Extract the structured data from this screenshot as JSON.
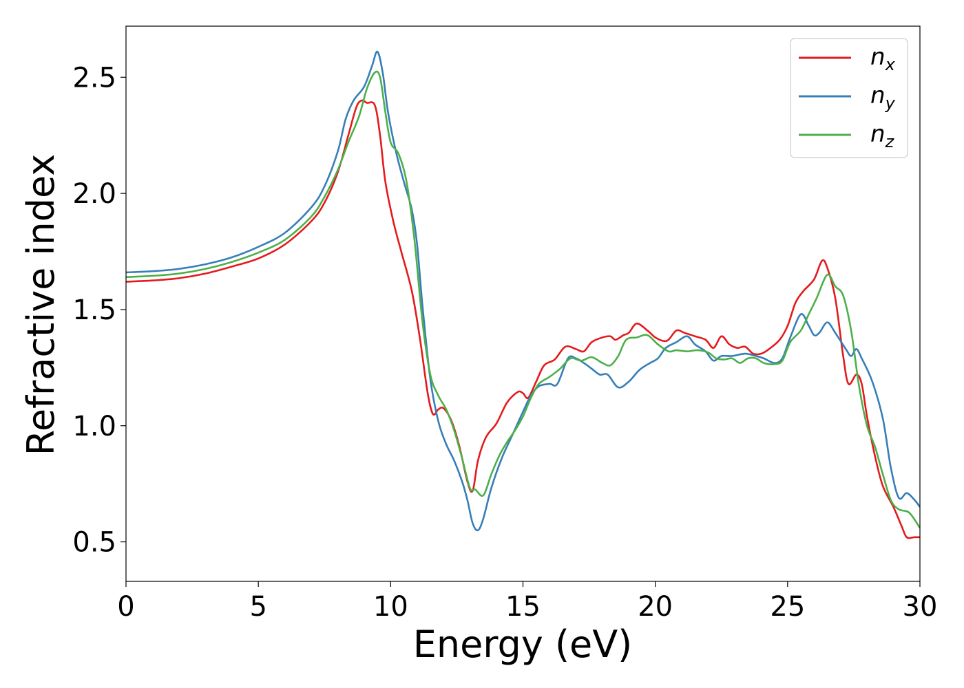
{
  "chart_data": {
    "type": "line",
    "xlabel": "Energy (eV)",
    "ylabel": "Refractive index",
    "xlim": [
      0,
      30
    ],
    "ylim": [
      0.33,
      2.72
    ],
    "xticks": [
      0,
      5,
      10,
      15,
      20,
      25,
      30
    ],
    "yticks": [
      0.5,
      1.0,
      1.5,
      2.0,
      2.5
    ],
    "xtick_labels": [
      "0",
      "5",
      "10",
      "15",
      "20",
      "25",
      "30"
    ],
    "ytick_labels": [
      "0.5",
      "1.0",
      "1.5",
      "2.0",
      "2.5"
    ],
    "grid": false,
    "legend_position": "top-right",
    "series": [
      {
        "name": "n_x",
        "label_main": "n",
        "label_sub": "x",
        "color": "#e41a1c",
        "points": [
          [
            0,
            1.62
          ],
          [
            1,
            1.625
          ],
          [
            2,
            1.635
          ],
          [
            3,
            1.655
          ],
          [
            4,
            1.685
          ],
          [
            5,
            1.72
          ],
          [
            6,
            1.78
          ],
          [
            7,
            1.88
          ],
          [
            7.5,
            1.96
          ],
          [
            8,
            2.09
          ],
          [
            8.4,
            2.25
          ],
          [
            8.7,
            2.37
          ],
          [
            8.9,
            2.4
          ],
          [
            9.1,
            2.39
          ],
          [
            9.4,
            2.38
          ],
          [
            9.6,
            2.25
          ],
          [
            9.8,
            2.05
          ],
          [
            10.1,
            1.88
          ],
          [
            10.4,
            1.75
          ],
          [
            10.8,
            1.58
          ],
          [
            11.1,
            1.38
          ],
          [
            11.4,
            1.14
          ],
          [
            11.6,
            1.05
          ],
          [
            11.8,
            1.07
          ],
          [
            12.0,
            1.075
          ],
          [
            12.3,
            1.02
          ],
          [
            12.6,
            0.91
          ],
          [
            12.9,
            0.76
          ],
          [
            13.1,
            0.72
          ],
          [
            13.3,
            0.85
          ],
          [
            13.6,
            0.95
          ],
          [
            14.0,
            1.01
          ],
          [
            14.4,
            1.1
          ],
          [
            14.8,
            1.145
          ],
          [
            15.0,
            1.14
          ],
          [
            15.2,
            1.12
          ],
          [
            15.5,
            1.19
          ],
          [
            15.8,
            1.26
          ],
          [
            16.2,
            1.285
          ],
          [
            16.6,
            1.34
          ],
          [
            17.0,
            1.33
          ],
          [
            17.3,
            1.32
          ],
          [
            17.6,
            1.36
          ],
          [
            18.0,
            1.38
          ],
          [
            18.3,
            1.385
          ],
          [
            18.5,
            1.37
          ],
          [
            18.8,
            1.39
          ],
          [
            19.0,
            1.4
          ],
          [
            19.3,
            1.44
          ],
          [
            19.7,
            1.41
          ],
          [
            20.0,
            1.38
          ],
          [
            20.3,
            1.365
          ],
          [
            20.5,
            1.37
          ],
          [
            20.8,
            1.41
          ],
          [
            21.1,
            1.4
          ],
          [
            21.5,
            1.385
          ],
          [
            21.9,
            1.37
          ],
          [
            22.2,
            1.335
          ],
          [
            22.5,
            1.385
          ],
          [
            22.8,
            1.35
          ],
          [
            23.1,
            1.335
          ],
          [
            23.4,
            1.34
          ],
          [
            23.7,
            1.31
          ],
          [
            24.0,
            1.31
          ],
          [
            24.3,
            1.33
          ],
          [
            24.7,
            1.37
          ],
          [
            25.0,
            1.43
          ],
          [
            25.3,
            1.53
          ],
          [
            25.6,
            1.58
          ],
          [
            26.0,
            1.63
          ],
          [
            26.3,
            1.71
          ],
          [
            26.5,
            1.68
          ],
          [
            26.8,
            1.55
          ],
          [
            27.1,
            1.3
          ],
          [
            27.3,
            1.18
          ],
          [
            27.6,
            1.22
          ],
          [
            27.8,
            1.18
          ],
          [
            28.0,
            1.04
          ],
          [
            28.3,
            0.87
          ],
          [
            28.6,
            0.74
          ],
          [
            29.0,
            0.65
          ],
          [
            29.3,
            0.57
          ],
          [
            29.5,
            0.52
          ],
          [
            29.8,
            0.52
          ],
          [
            30,
            0.52
          ]
        ]
      },
      {
        "name": "n_y",
        "label_main": "n",
        "label_sub": "y",
        "color": "#377eb8",
        "points": [
          [
            0,
            1.66
          ],
          [
            1,
            1.665
          ],
          [
            2,
            1.675
          ],
          [
            3,
            1.695
          ],
          [
            4,
            1.725
          ],
          [
            5,
            1.77
          ],
          [
            6,
            1.83
          ],
          [
            7,
            1.94
          ],
          [
            7.5,
            2.03
          ],
          [
            8,
            2.18
          ],
          [
            8.3,
            2.32
          ],
          [
            8.6,
            2.4
          ],
          [
            9.0,
            2.46
          ],
          [
            9.3,
            2.55
          ],
          [
            9.5,
            2.61
          ],
          [
            9.7,
            2.52
          ],
          [
            9.9,
            2.35
          ],
          [
            10.2,
            2.18
          ],
          [
            10.5,
            2.05
          ],
          [
            10.8,
            1.93
          ],
          [
            11.0,
            1.78
          ],
          [
            11.2,
            1.52
          ],
          [
            11.5,
            1.2
          ],
          [
            11.8,
            1.02
          ],
          [
            12.1,
            0.92
          ],
          [
            12.4,
            0.85
          ],
          [
            12.7,
            0.76
          ],
          [
            12.9,
            0.68
          ],
          [
            13.1,
            0.58
          ],
          [
            13.3,
            0.55
          ],
          [
            13.5,
            0.6
          ],
          [
            13.8,
            0.73
          ],
          [
            14.2,
            0.86
          ],
          [
            14.6,
            0.96
          ],
          [
            15.0,
            1.06
          ],
          [
            15.3,
            1.13
          ],
          [
            15.6,
            1.17
          ],
          [
            16.0,
            1.18
          ],
          [
            16.3,
            1.18
          ],
          [
            16.7,
            1.29
          ],
          [
            17.0,
            1.29
          ],
          [
            17.3,
            1.27
          ],
          [
            17.6,
            1.245
          ],
          [
            17.9,
            1.22
          ],
          [
            18.2,
            1.22
          ],
          [
            18.6,
            1.165
          ],
          [
            19.0,
            1.19
          ],
          [
            19.4,
            1.24
          ],
          [
            19.8,
            1.27
          ],
          [
            20.1,
            1.29
          ],
          [
            20.4,
            1.335
          ],
          [
            20.8,
            1.36
          ],
          [
            21.2,
            1.385
          ],
          [
            21.5,
            1.35
          ],
          [
            21.9,
            1.32
          ],
          [
            22.2,
            1.28
          ],
          [
            22.5,
            1.3
          ],
          [
            22.9,
            1.3
          ],
          [
            23.4,
            1.31
          ],
          [
            23.8,
            1.3
          ],
          [
            24.1,
            1.29
          ],
          [
            24.5,
            1.27
          ],
          [
            24.8,
            1.29
          ],
          [
            25.1,
            1.38
          ],
          [
            25.5,
            1.48
          ],
          [
            25.8,
            1.43
          ],
          [
            26.0,
            1.39
          ],
          [
            26.2,
            1.4
          ],
          [
            26.5,
            1.445
          ],
          [
            26.8,
            1.4
          ],
          [
            27.2,
            1.33
          ],
          [
            27.4,
            1.3
          ],
          [
            27.6,
            1.33
          ],
          [
            27.8,
            1.29
          ],
          [
            28.2,
            1.19
          ],
          [
            28.6,
            1.03
          ],
          [
            28.9,
            0.82
          ],
          [
            29.2,
            0.69
          ],
          [
            29.5,
            0.71
          ],
          [
            29.8,
            0.68
          ],
          [
            30,
            0.65
          ]
        ]
      },
      {
        "name": "n_z",
        "label_main": "n",
        "label_sub": "z",
        "color": "#4daf4a",
        "points": [
          [
            0,
            1.64
          ],
          [
            1,
            1.645
          ],
          [
            2,
            1.655
          ],
          [
            3,
            1.675
          ],
          [
            4,
            1.705
          ],
          [
            5,
            1.745
          ],
          [
            6,
            1.8
          ],
          [
            7,
            1.9
          ],
          [
            7.5,
            1.985
          ],
          [
            8,
            2.1
          ],
          [
            8.4,
            2.22
          ],
          [
            8.8,
            2.33
          ],
          [
            9.1,
            2.45
          ],
          [
            9.4,
            2.52
          ],
          [
            9.6,
            2.5
          ],
          [
            9.8,
            2.35
          ],
          [
            10.0,
            2.22
          ],
          [
            10.3,
            2.17
          ],
          [
            10.6,
            2.05
          ],
          [
            10.9,
            1.8
          ],
          [
            11.2,
            1.45
          ],
          [
            11.5,
            1.22
          ],
          [
            11.8,
            1.13
          ],
          [
            12.1,
            1.07
          ],
          [
            12.4,
            0.98
          ],
          [
            12.7,
            0.86
          ],
          [
            13.0,
            0.73
          ],
          [
            13.2,
            0.725
          ],
          [
            13.5,
            0.7
          ],
          [
            13.8,
            0.79
          ],
          [
            14.1,
            0.87
          ],
          [
            14.4,
            0.93
          ],
          [
            14.7,
            0.98
          ],
          [
            15.0,
            1.04
          ],
          [
            15.3,
            1.12
          ],
          [
            15.6,
            1.18
          ],
          [
            16.0,
            1.21
          ],
          [
            16.4,
            1.245
          ],
          [
            16.8,
            1.29
          ],
          [
            17.2,
            1.28
          ],
          [
            17.6,
            1.295
          ],
          [
            18.0,
            1.27
          ],
          [
            18.3,
            1.26
          ],
          [
            18.6,
            1.3
          ],
          [
            18.9,
            1.37
          ],
          [
            19.3,
            1.38
          ],
          [
            19.7,
            1.39
          ],
          [
            20.1,
            1.35
          ],
          [
            20.5,
            1.32
          ],
          [
            20.8,
            1.325
          ],
          [
            21.2,
            1.32
          ],
          [
            21.6,
            1.325
          ],
          [
            22.0,
            1.315
          ],
          [
            22.3,
            1.29
          ],
          [
            22.6,
            1.285
          ],
          [
            22.9,
            1.29
          ],
          [
            23.2,
            1.27
          ],
          [
            23.5,
            1.29
          ],
          [
            23.8,
            1.29
          ],
          [
            24.1,
            1.27
          ],
          [
            24.5,
            1.265
          ],
          [
            24.8,
            1.28
          ],
          [
            25.1,
            1.36
          ],
          [
            25.5,
            1.41
          ],
          [
            25.8,
            1.48
          ],
          [
            26.1,
            1.55
          ],
          [
            26.5,
            1.65
          ],
          [
            26.8,
            1.6
          ],
          [
            27.1,
            1.56
          ],
          [
            27.4,
            1.41
          ],
          [
            27.7,
            1.17
          ],
          [
            28.0,
            1.0
          ],
          [
            28.3,
            0.91
          ],
          [
            28.6,
            0.79
          ],
          [
            28.9,
            0.68
          ],
          [
            29.2,
            0.64
          ],
          [
            29.6,
            0.625
          ],
          [
            30,
            0.56
          ]
        ]
      }
    ]
  }
}
